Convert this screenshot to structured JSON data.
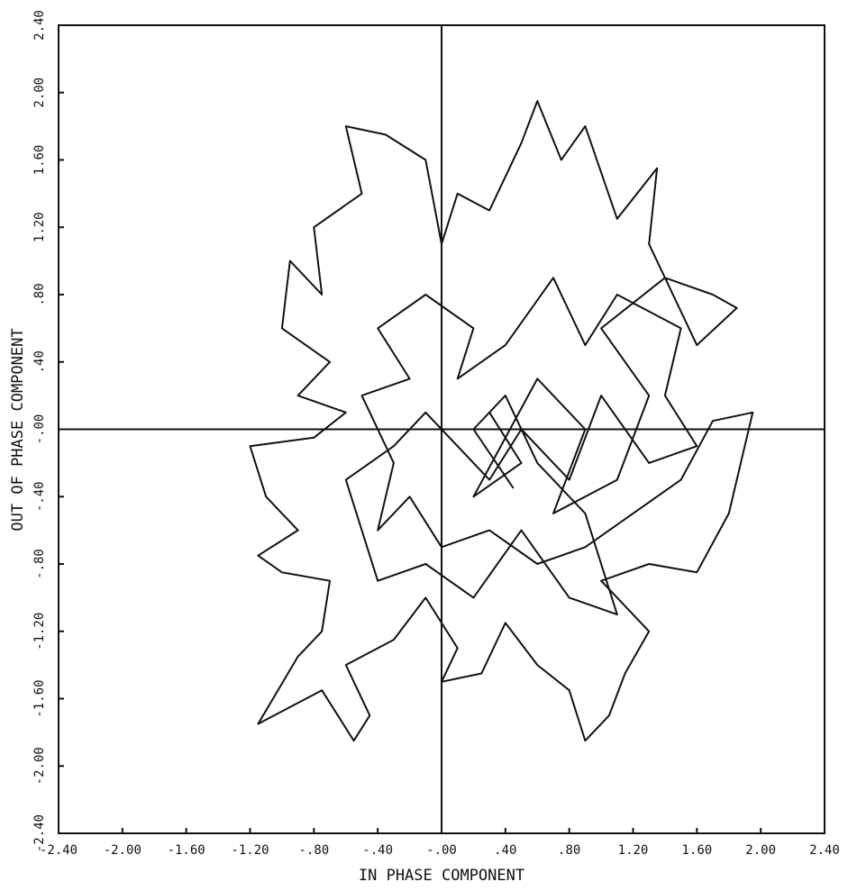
{
  "chart_data": {
    "type": "line",
    "xlabel": "IN PHASE COMPONENT",
    "ylabel": "OUT OF PHASE COMPONENT",
    "xlim": [
      -2.4,
      2.4
    ],
    "ylim": [
      -2.4,
      2.4
    ],
    "xticks": [
      {
        "value": -2.4,
        "label": "-2.40"
      },
      {
        "value": -2.0,
        "label": "-2.00"
      },
      {
        "value": -1.6,
        "label": "-1.60"
      },
      {
        "value": -1.2,
        "label": "-1.20"
      },
      {
        "value": -0.8,
        "label": "-.80"
      },
      {
        "value": -0.4,
        "label": "-.40"
      },
      {
        "value": 0,
        "label": "-.00"
      },
      {
        "value": 0.4,
        "label": ".40"
      },
      {
        "value": 0.8,
        "label": ".80"
      },
      {
        "value": 1.2,
        "label": "1.20"
      },
      {
        "value": 1.6,
        "label": "1.60"
      },
      {
        "value": 2.0,
        "label": "2.00"
      },
      {
        "value": 2.4,
        "label": "2.40"
      }
    ],
    "yticks": [
      {
        "value": -2.4,
        "label": "-2.40"
      },
      {
        "value": -2.0,
        "label": "-2.00"
      },
      {
        "value": -1.6,
        "label": "-1.60"
      },
      {
        "value": -1.2,
        "label": "-1.20"
      },
      {
        "value": -0.8,
        "label": "-.80"
      },
      {
        "value": -0.4,
        "label": "-.40"
      },
      {
        "value": 0,
        "label": "-.00"
      },
      {
        "value": 0.4,
        "label": ".40"
      },
      {
        "value": 0.8,
        "label": ".80"
      },
      {
        "value": 1.2,
        "label": "1.20"
      },
      {
        "value": 1.6,
        "label": "1.60"
      },
      {
        "value": 2.0,
        "label": "2.00"
      },
      {
        "value": 2.4,
        "label": "2.40"
      }
    ],
    "series": [
      {
        "color": "#111111",
        "x": [
          0.3,
          0.5,
          0.2,
          0.6,
          0.9,
          0.7,
          1.1,
          1.3,
          1.0,
          1.4,
          1.7,
          1.85,
          1.6,
          1.3,
          1.35,
          1.1,
          0.9,
          0.75,
          0.6,
          0.5,
          0.3,
          0.1,
          0.0,
          -0.1,
          -0.35,
          -0.6,
          -0.5,
          -0.8,
          -0.75,
          -0.95,
          -1.0,
          -0.7,
          -0.9,
          -0.6,
          -0.8,
          -1.2,
          -1.1,
          -0.9,
          -1.15,
          -1.0,
          -0.7,
          -0.75,
          -0.9,
          -1.15,
          -0.75,
          -0.55,
          -0.45,
          -0.6,
          -0.3,
          -0.1,
          0.1,
          0.0,
          0.25,
          0.4,
          0.6,
          0.8,
          0.9,
          1.05,
          1.15,
          1.3,
          1.0,
          1.3,
          1.6,
          1.8,
          1.95,
          1.7,
          1.5,
          1.2,
          0.9,
          0.6,
          0.3,
          0.0,
          -0.2,
          -0.4,
          -0.3,
          -0.5,
          -0.2,
          -0.4,
          -0.1,
          0.2,
          0.1,
          0.4,
          0.7,
          0.9,
          1.1,
          1.5,
          1.4,
          1.6,
          1.3,
          1.0,
          0.8,
          0.5,
          0.3,
          0.1,
          -0.1,
          -0.3,
          -0.6,
          -0.4,
          -0.1,
          0.2,
          0.5,
          0.8,
          1.1,
          0.9,
          0.6,
          0.4,
          0.2,
          0.45
        ],
        "y": [
          0.1,
          -0.2,
          -0.4,
          0.3,
          0.0,
          -0.5,
          -0.3,
          0.2,
          0.6,
          0.9,
          0.8,
          0.72,
          0.5,
          1.1,
          1.55,
          1.25,
          1.8,
          1.6,
          1.95,
          1.7,
          1.3,
          1.4,
          1.1,
          1.6,
          1.75,
          1.8,
          1.4,
          1.2,
          0.8,
          1.0,
          0.6,
          0.4,
          0.2,
          0.1,
          -0.05,
          -0.1,
          -0.4,
          -0.6,
          -0.75,
          -0.85,
          -0.9,
          -1.2,
          -1.35,
          -1.75,
          -1.55,
          -1.85,
          -1.7,
          -1.4,
          -1.25,
          -1.0,
          -1.3,
          -1.5,
          -1.45,
          -1.15,
          -1.4,
          -1.55,
          -1.85,
          -1.7,
          -1.45,
          -1.2,
          -0.9,
          -0.8,
          -0.85,
          -0.5,
          0.1,
          0.05,
          -0.3,
          -0.5,
          -0.7,
          -0.8,
          -0.6,
          -0.7,
          -0.4,
          -0.6,
          -0.2,
          0.2,
          0.3,
          0.6,
          0.8,
          0.6,
          0.3,
          0.5,
          0.9,
          0.5,
          0.8,
          0.6,
          0.2,
          -0.1,
          -0.2,
          0.2,
          -0.3,
          0.0,
          -0.3,
          -0.1,
          0.1,
          -0.1,
          -0.3,
          -0.9,
          -0.8,
          -1.0,
          -0.6,
          -1.0,
          -1.1,
          -0.5,
          -0.2,
          0.2,
          0.0,
          -0.35
        ]
      }
    ]
  }
}
